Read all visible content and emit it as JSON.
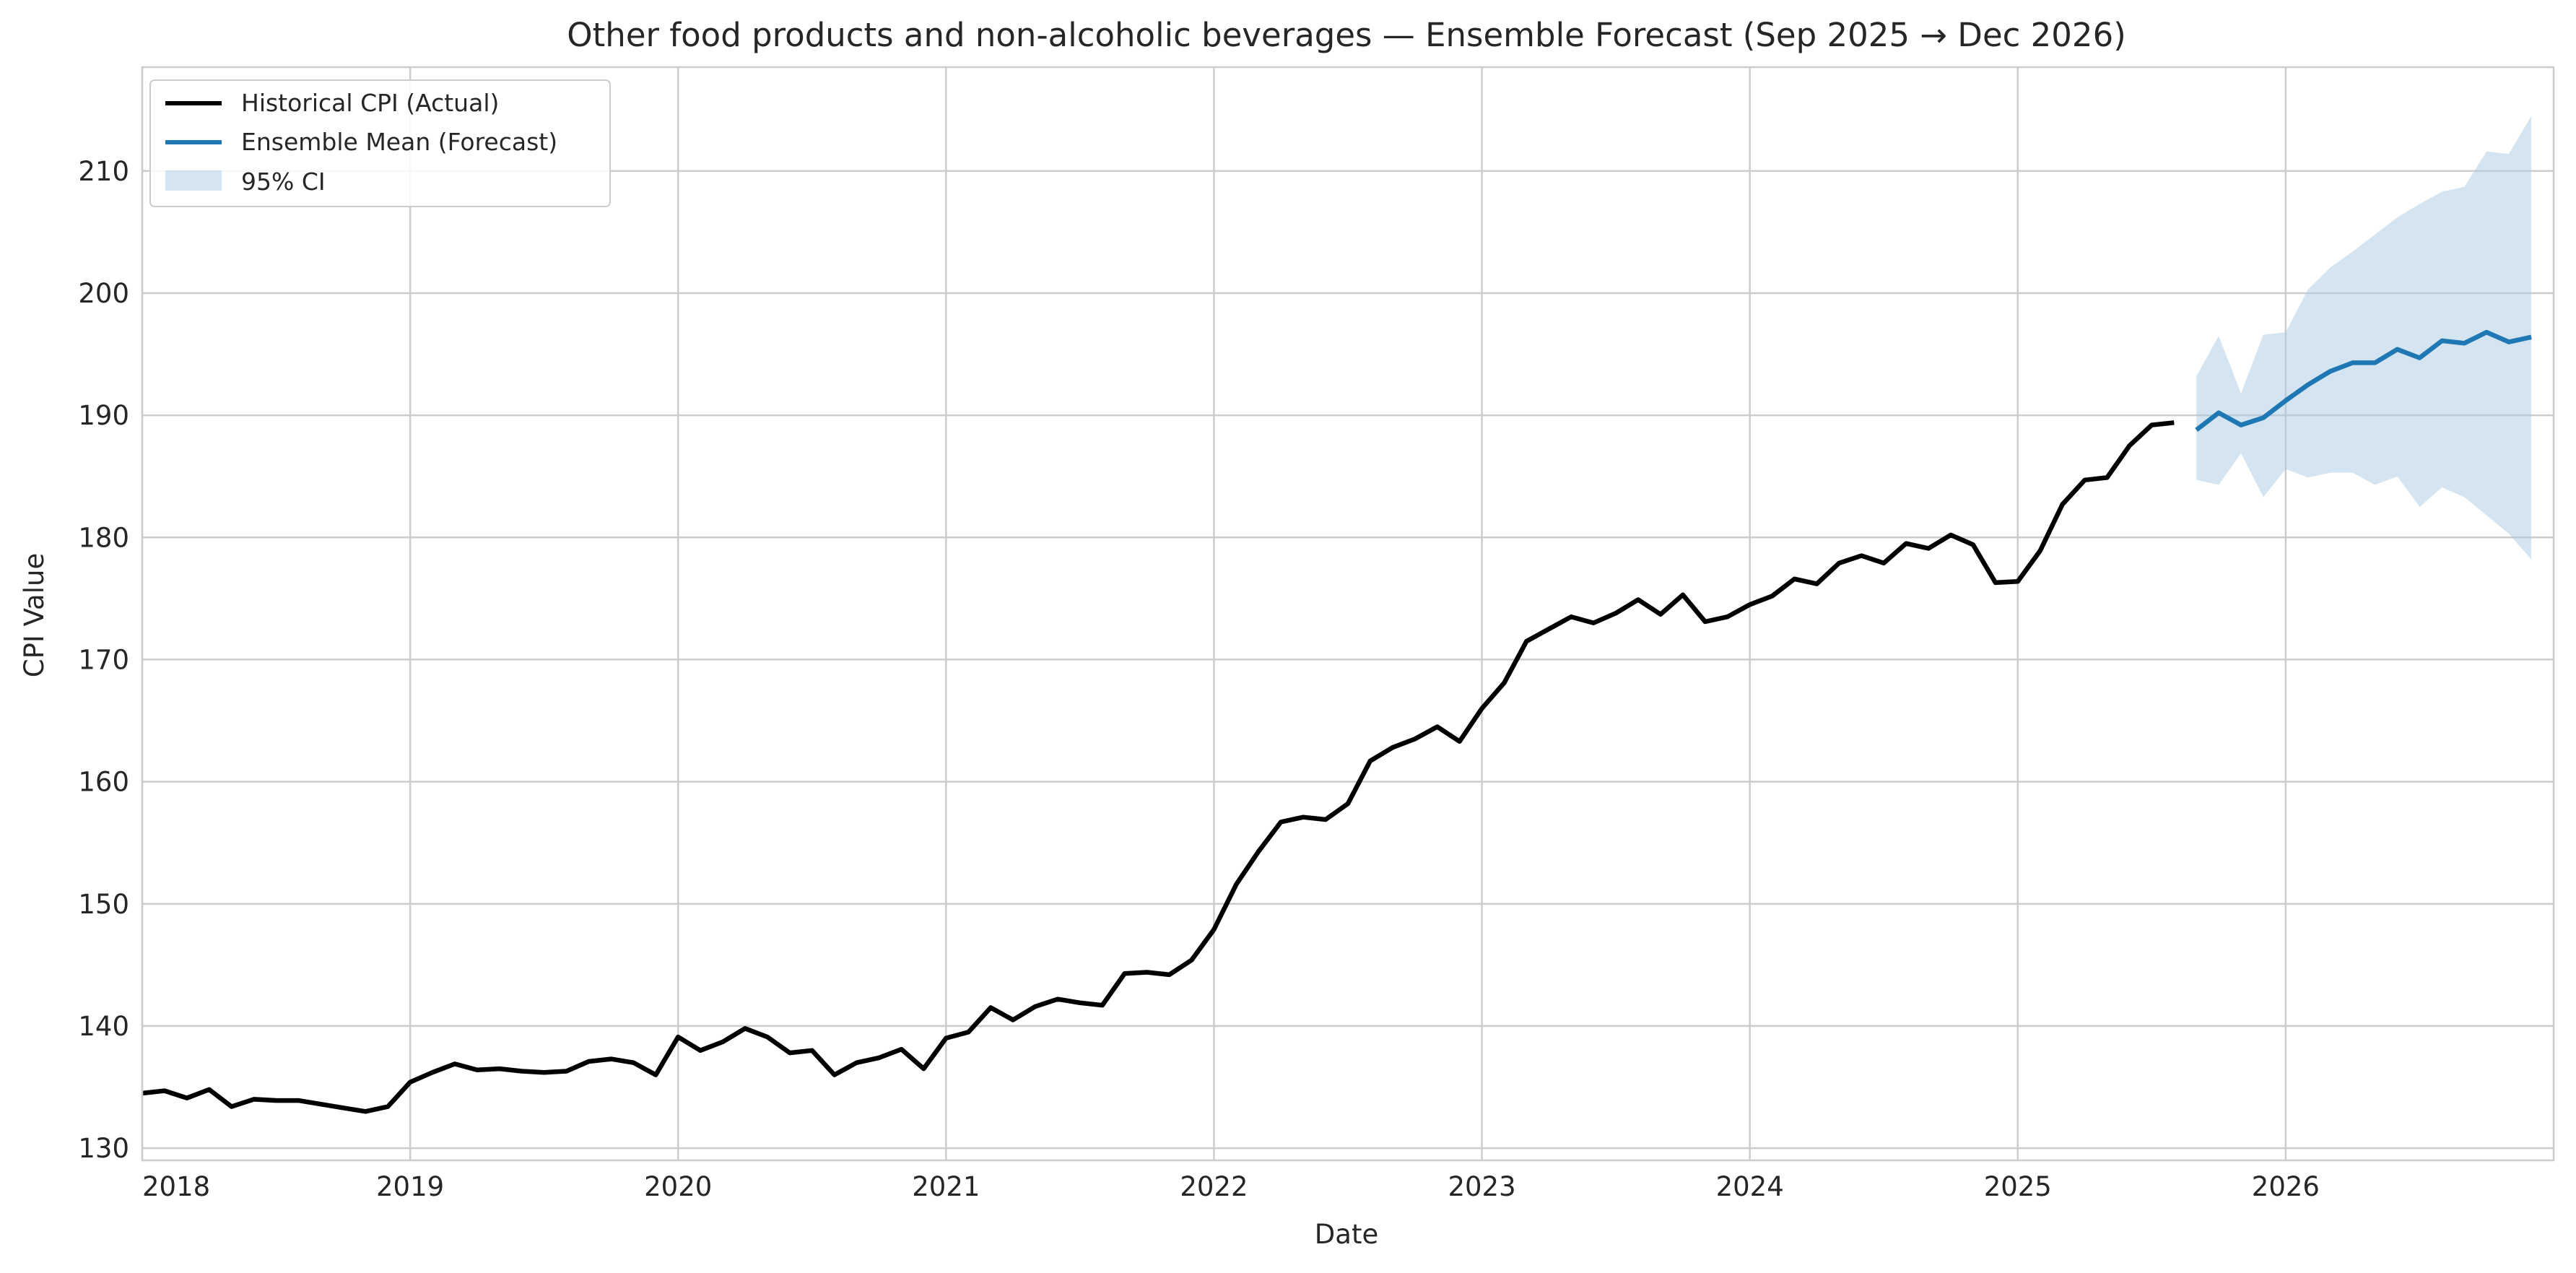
{
  "chart_data": {
    "type": "line",
    "title": "Other food products and non-alcoholic beverages — Ensemble Forecast (Sep 2025 → Dec 2026)",
    "xlabel": "Date",
    "ylabel": "CPI Value",
    "xlim": [
      "2018-01",
      "2027-01"
    ],
    "ylim": [
      129,
      218.5
    ],
    "x_ticks": [
      "2018",
      "2019",
      "2020",
      "2021",
      "2022",
      "2023",
      "2024",
      "2025",
      "2026"
    ],
    "y_ticks": [
      130,
      140,
      150,
      160,
      170,
      180,
      190,
      200,
      210
    ],
    "grid": true,
    "legend_position": "top-left",
    "colors": {
      "historical": "#000000",
      "forecast": "#1f77b4",
      "ci": "#a9cce3",
      "grid": "#cccccc",
      "axes": "#cccccc"
    },
    "series": [
      {
        "name": "Historical CPI (Actual)",
        "x": [
          "2018-01",
          "2018-02",
          "2018-03",
          "2018-04",
          "2018-05",
          "2018-06",
          "2018-07",
          "2018-08",
          "2018-09",
          "2018-10",
          "2018-11",
          "2018-12",
          "2019-01",
          "2019-02",
          "2019-03",
          "2019-04",
          "2019-05",
          "2019-06",
          "2019-07",
          "2019-08",
          "2019-09",
          "2019-10",
          "2019-11",
          "2019-12",
          "2020-01",
          "2020-02",
          "2020-03",
          "2020-04",
          "2020-05",
          "2020-06",
          "2020-07",
          "2020-08",
          "2020-09",
          "2020-10",
          "2020-11",
          "2020-12",
          "2021-01",
          "2021-02",
          "2021-03",
          "2021-04",
          "2021-05",
          "2021-06",
          "2021-07",
          "2021-08",
          "2021-09",
          "2021-10",
          "2021-11",
          "2021-12",
          "2022-01",
          "2022-02",
          "2022-03",
          "2022-04",
          "2022-05",
          "2022-06",
          "2022-07",
          "2022-08",
          "2022-09",
          "2022-10",
          "2022-11",
          "2022-12",
          "2023-01",
          "2023-02",
          "2023-03",
          "2023-04",
          "2023-05",
          "2023-06",
          "2023-07",
          "2023-08",
          "2023-09",
          "2023-10",
          "2023-11",
          "2023-12",
          "2024-01",
          "2024-02",
          "2024-03",
          "2024-04",
          "2024-05",
          "2024-06",
          "2024-07",
          "2024-08",
          "2024-09",
          "2024-10",
          "2024-11",
          "2024-12",
          "2025-01",
          "2025-02",
          "2025-03",
          "2025-04",
          "2025-05",
          "2025-06",
          "2025-07",
          "2025-08"
        ],
        "values": [
          134.5,
          134.7,
          134.1,
          134.8,
          133.4,
          134.0,
          133.9,
          133.9,
          133.6,
          133.3,
          133.0,
          133.4,
          135.4,
          136.2,
          136.9,
          136.4,
          136.5,
          136.3,
          136.2,
          136.3,
          137.1,
          137.3,
          137.0,
          136.0,
          139.1,
          138.0,
          138.7,
          139.8,
          139.1,
          137.8,
          138.0,
          136.0,
          137.0,
          137.4,
          138.1,
          136.5,
          139.0,
          139.5,
          141.5,
          140.5,
          141.6,
          142.2,
          141.9,
          141.7,
          144.3,
          144.4,
          144.2,
          145.4,
          147.9,
          151.6,
          154.3,
          156.7,
          157.1,
          156.9,
          158.2,
          161.7,
          162.8,
          163.5,
          164.5,
          163.3,
          166.0,
          168.1,
          171.5,
          172.5,
          173.5,
          173.0,
          173.8,
          174.9,
          173.7,
          175.3,
          173.1,
          173.5,
          174.5,
          175.2,
          176.6,
          176.2,
          177.9,
          178.5,
          177.9,
          179.5,
          179.1,
          180.2,
          179.4,
          176.3,
          176.4,
          178.9,
          182.7,
          184.7,
          184.9,
          187.5,
          189.2,
          189.4
        ]
      },
      {
        "name": "Ensemble Mean (Forecast)",
        "x": [
          "2025-09",
          "2025-10",
          "2025-11",
          "2025-12",
          "2026-01",
          "2026-02",
          "2026-03",
          "2026-04",
          "2026-05",
          "2026-06",
          "2026-07",
          "2026-08",
          "2026-09",
          "2026-10",
          "2026-11",
          "2026-12"
        ],
        "values": [
          188.8,
          190.2,
          189.2,
          189.8,
          191.2,
          192.5,
          193.6,
          194.3,
          194.3,
          195.4,
          194.7,
          196.1,
          195.9,
          196.8,
          196.0,
          196.4
        ],
        "ci_lower": [
          184.7,
          184.3,
          186.9,
          183.3,
          185.6,
          184.9,
          185.3,
          185.3,
          184.3,
          185.0,
          182.5,
          184.1,
          183.3,
          181.8,
          180.3,
          178.2
        ],
        "ci_upper": [
          193.2,
          196.5,
          191.8,
          196.6,
          196.8,
          200.3,
          202.1,
          203.4,
          204.8,
          206.2,
          207.3,
          208.3,
          208.7,
          211.6,
          211.4,
          214.5
        ]
      },
      {
        "name": "95% CI"
      }
    ]
  }
}
